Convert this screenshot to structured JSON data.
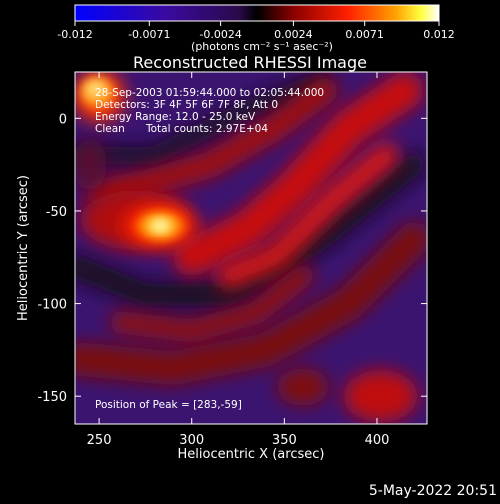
{
  "chart_data": {
    "type": "heatmap",
    "title": "Reconstructed RHESSI Image",
    "xlabel": "Heliocentric X (arcsec)",
    "ylabel": "Heliocentric Y (arcsec)",
    "xlim": [
      237,
      427
    ],
    "ylim": [
      -165,
      25
    ],
    "x_ticks": [
      250,
      300,
      350,
      400
    ],
    "y_ticks": [
      0,
      -50,
      -100,
      -150
    ],
    "colorbar": {
      "range": [
        -0.012,
        0.012
      ],
      "tick_values": [
        -0.012,
        -0.0071,
        -0.0024,
        0.0024,
        0.0071,
        0.012
      ],
      "tick_labels": [
        "-0.012",
        "-0.0071",
        "-0.0024",
        "0.0024",
        "0.0071",
        "0.012"
      ],
      "units_label": "(photons cm⁻² s⁻¹ asec⁻²)"
    },
    "annotations": {
      "time": "28-Sep-2003 01:59:44.000 to 02:05:44.000",
      "detectors": "Detectors: 3F 4F 5F 6F 7F 8F, Att 0",
      "energy": "Energy Range: 12.0 - 25.0 keV",
      "method": "Clean",
      "counts": "Total counts: 2.97E+04",
      "peak": "Position of Peak = [283,-59]"
    },
    "peak": {
      "x": 283,
      "y": -59
    },
    "sources": [
      {
        "x": 283,
        "y": -58,
        "value": 0.012
      },
      {
        "x": 248,
        "y": 13,
        "value": 0.0085
      }
    ],
    "colors": {
      "negative_min": "#0000ff",
      "negative_mid": "#4b0082",
      "zero": "#000000",
      "positive_low": "#8b0000",
      "positive_mid": "#ff2000",
      "positive_high": "#ffff00",
      "positive_max": "#ffffff"
    }
  },
  "footer": {
    "date": "5-May-2022 20:51"
  }
}
